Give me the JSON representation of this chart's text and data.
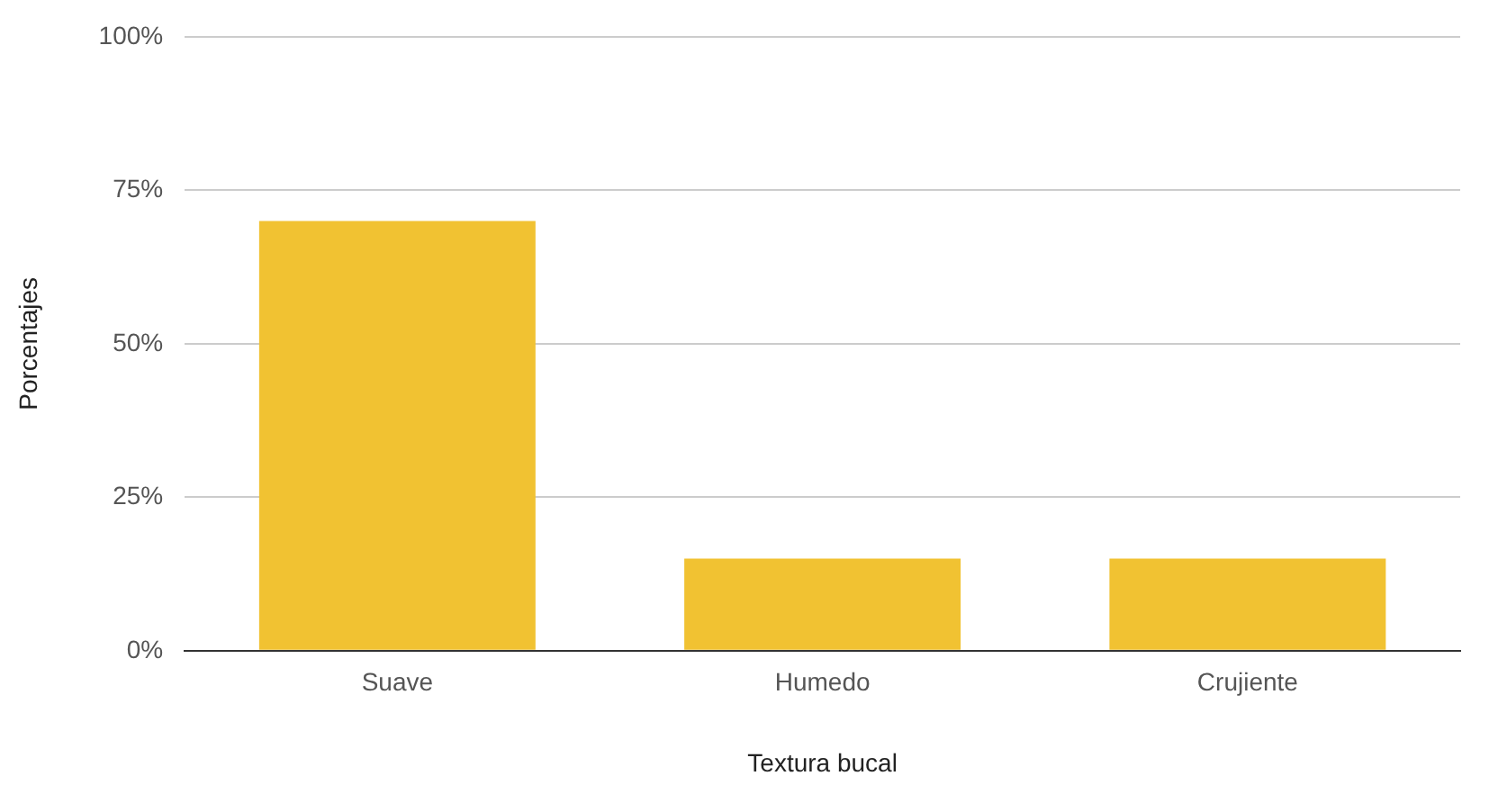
{
  "chart_data": {
    "type": "bar",
    "xlabel": "Textura bucal",
    "ylabel": "Porcentajes",
    "categories": [
      "Suave",
      "Humedo",
      "Crujiente"
    ],
    "values": [
      70,
      15,
      15
    ],
    "color": "#f1c232",
    "ylim": [
      0,
      100
    ],
    "yticks": [
      {
        "value": 0,
        "label": "0%"
      },
      {
        "value": 25,
        "label": "25%"
      },
      {
        "value": 50,
        "label": "50%"
      },
      {
        "value": 75,
        "label": "75%"
      },
      {
        "value": 100,
        "label": "100%"
      }
    ],
    "grid": "y",
    "legend": false
  }
}
